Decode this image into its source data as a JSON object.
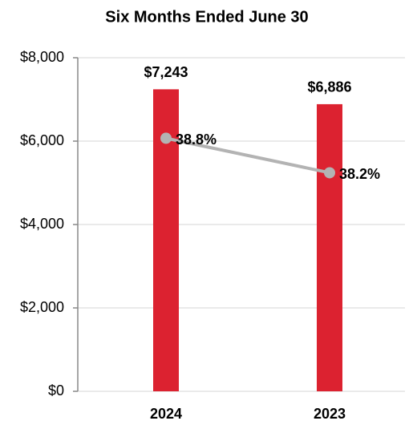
{
  "chart_data": {
    "type": "bar",
    "title": "Six Months Ended June 30",
    "categories": [
      "2024",
      "2023"
    ],
    "values": [
      7243,
      6886
    ],
    "value_labels": [
      "$7,243",
      "$6,886"
    ],
    "color": "#dc2230",
    "ylim": [
      0,
      8000
    ],
    "yticks": [
      {
        "value": 0,
        "label": "$0"
      },
      {
        "value": 2000,
        "label": "$2,000"
      },
      {
        "value": 4000,
        "label": "$4,000"
      },
      {
        "value": 6000,
        "label": "$6,000"
      },
      {
        "value": 8000,
        "label": "$8,000"
      }
    ],
    "grid": true,
    "line": {
      "type": "line",
      "axis": "y2",
      "values": [
        38.8,
        38.2
      ],
      "value_labels": [
        "38.8%",
        "38.2%"
      ],
      "color": "#b3b3b3"
    },
    "y2lim": [
      34.4,
      40.2
    ]
  }
}
